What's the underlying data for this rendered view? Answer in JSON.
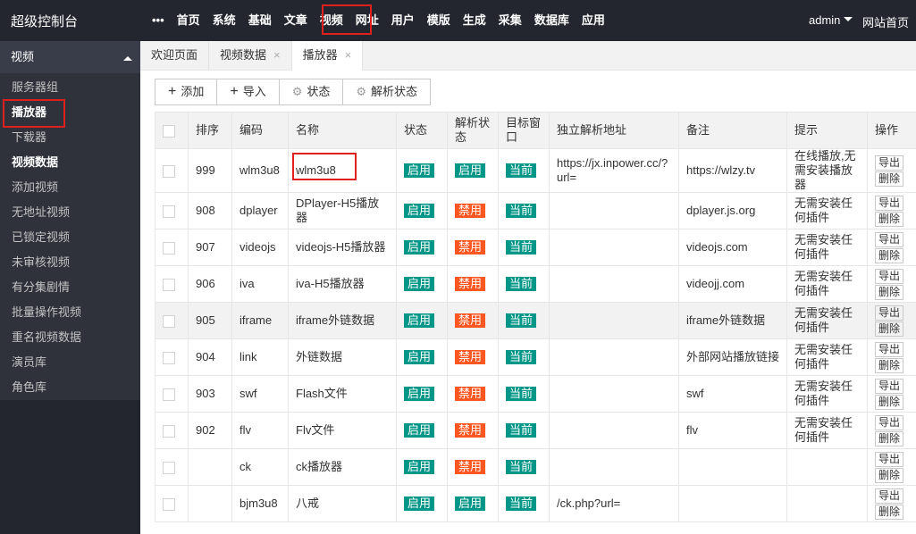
{
  "topbar": {
    "brand": "超级控制台",
    "nav": [
      "•••",
      "首页",
      "系统",
      "基础",
      "文章",
      "视频",
      "网址",
      "用户",
      "模版",
      "生成",
      "采集",
      "数据库",
      "应用"
    ],
    "user": "admin",
    "site_link": "网站首页"
  },
  "sidebar": {
    "title": "视频",
    "items": [
      "服务器组",
      "播放器",
      "下载器",
      "视频数据",
      "添加视频",
      "无地址视频",
      "已锁定视频",
      "未审核视频",
      "有分集剧情",
      "批量操作视频",
      "重名视频数据",
      "演员库",
      "角色库"
    ]
  },
  "tabs": [
    "欢迎页面",
    "视频数据",
    "播放器"
  ],
  "toolbar": [
    "添加",
    "导入",
    "状态",
    "解析状态"
  ],
  "table": {
    "columns": [
      "排序",
      "编码",
      "名称",
      "状态",
      "解析状态",
      "目标窗口",
      "独立解析地址",
      "备注",
      "提示",
      "操作"
    ],
    "rows": [
      [
        "999",
        "wlm3u8",
        "wlm3u8",
        "启用",
        "启用",
        "当前",
        "https://jx.inpower.cc/?url=",
        "https://wlzy.tv",
        "在线播放,无需安装播放器"
      ],
      [
        "908",
        "dplayer",
        "DPlayer-H5播放器",
        "启用",
        "禁用",
        "当前",
        null,
        "dplayer.js.org",
        "无需安装任何插件"
      ],
      [
        "907",
        "videojs",
        "videojs-H5播放器",
        "启用",
        "禁用",
        "当前",
        null,
        "videojs.com",
        "无需安装任何插件"
      ],
      [
        "906",
        "iva",
        "iva-H5播放器",
        "启用",
        "禁用",
        "当前",
        null,
        "videojj.com",
        "无需安装任何插件"
      ],
      [
        "905",
        "iframe",
        "iframe外链数据",
        "启用",
        "禁用",
        "当前",
        null,
        "iframe外链数据",
        "无需安装任何插件"
      ],
      [
        "904",
        "link",
        "外链数据",
        "启用",
        "禁用",
        "当前",
        null,
        "外部网站播放链接",
        "无需安装任何插件"
      ],
      [
        "903",
        "swf",
        "Flash文件",
        "启用",
        "禁用",
        "当前",
        null,
        "swf",
        "无需安装任何插件"
      ],
      [
        "902",
        "flv",
        "Flv文件",
        "启用",
        "禁用",
        "当前",
        null,
        "flv",
        "无需安装任何插件"
      ],
      [
        null,
        "ck",
        "ck播放器",
        "启用",
        "禁用",
        "当前",
        null,
        null,
        null
      ],
      [
        null,
        "bjm3u8",
        "八戒",
        "启用",
        "启用",
        "当前",
        "/ck.php?url=",
        null,
        null
      ]
    ],
    "row_actions": [
      "导出",
      "删除"
    ]
  }
}
